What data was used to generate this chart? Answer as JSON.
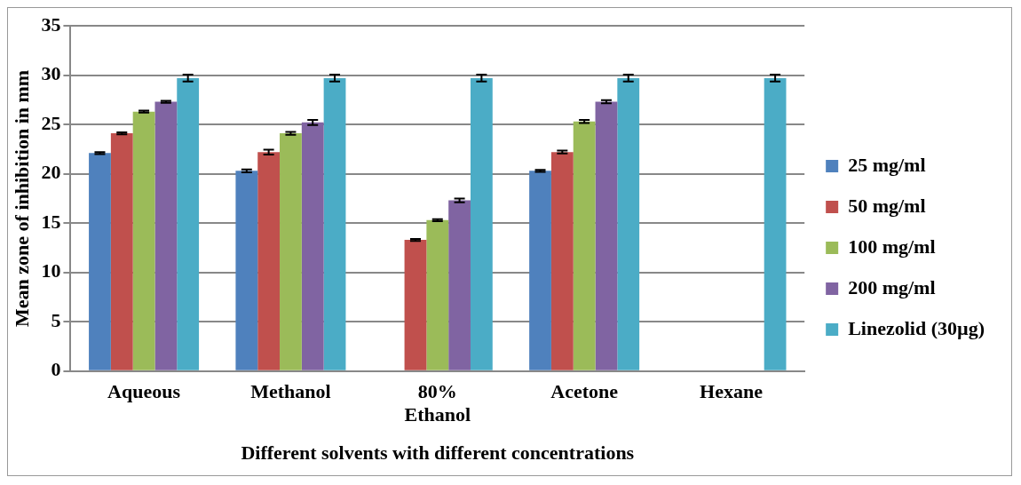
{
  "chart_data": {
    "type": "bar",
    "xlabel": "Different solvents with different concentrations",
    "ylabel": "Mean zone of inhibition in mm",
    "categories": [
      "Aqueous",
      "Methanol",
      "80% Ethanol",
      "Acetone",
      "Hexane"
    ],
    "series": [
      {
        "name": "25 mg/ml",
        "color": "#4f81bd",
        "values": [
          22.1,
          20.3,
          0,
          20.3,
          0
        ],
        "errors": [
          0.1,
          0.15,
          null,
          0.1,
          null
        ]
      },
      {
        "name": "50 mg/ml",
        "color": "#c0504d",
        "values": [
          24.1,
          22.2,
          13.3,
          22.2,
          0
        ],
        "errors": [
          0.1,
          0.25,
          0.1,
          0.15,
          null
        ]
      },
      {
        "name": "100 mg/ml",
        "color": "#9bbb59",
        "values": [
          26.3,
          24.1,
          15.3,
          25.3,
          0
        ],
        "errors": [
          0.1,
          0.15,
          0.1,
          0.15,
          null
        ]
      },
      {
        "name": "200 mg/ml",
        "color": "#8064a2",
        "values": [
          27.3,
          25.2,
          17.3,
          27.3,
          0
        ],
        "errors": [
          0.1,
          0.25,
          0.2,
          0.15,
          null
        ]
      },
      {
        "name": "Linezolid (30µg)",
        "color": "#4bacc6",
        "values": [
          29.7,
          29.7,
          29.7,
          29.7,
          29.7
        ],
        "errors": [
          0.35,
          0.35,
          0.35,
          0.35,
          0.35
        ]
      }
    ],
    "ylim": [
      0,
      35
    ],
    "yticks": [
      0,
      5,
      10,
      15,
      20,
      25,
      30,
      35
    ],
    "grid": "y",
    "legend": "right"
  }
}
